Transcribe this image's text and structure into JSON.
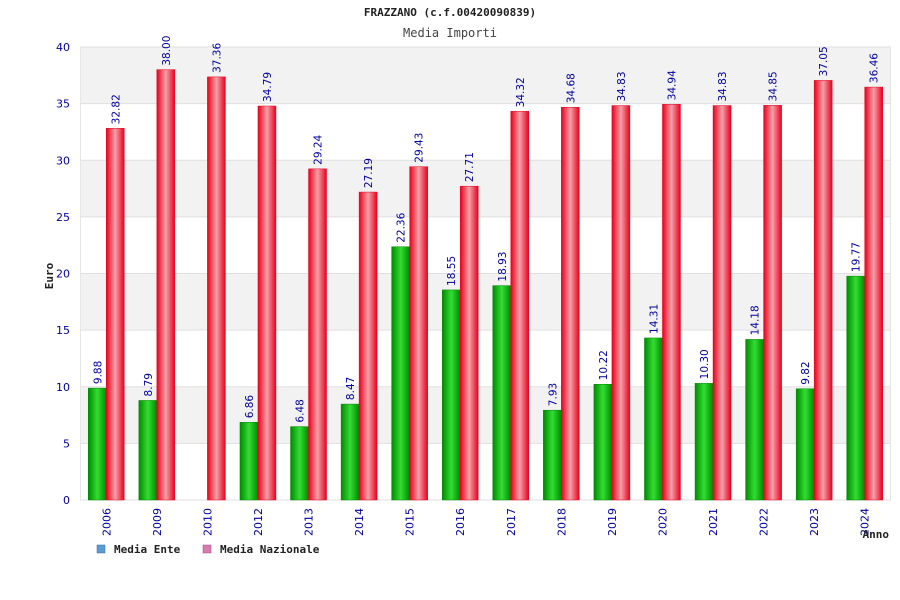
{
  "chart_data": {
    "type": "bar",
    "title": "FRAZZANO (c.f.00420090839)",
    "subtitle": "Media Importi",
    "ylabel": "Euro",
    "xlabel": "Anno",
    "ylim": [
      0,
      40
    ],
    "yticks": [
      "0",
      "5",
      "10",
      "15",
      "20",
      "25",
      "30",
      "35",
      "40"
    ],
    "categories": [
      "2006",
      "2009",
      "2010",
      "2012",
      "2013",
      "2014",
      "2015",
      "2016",
      "2017",
      "2018",
      "2019",
      "2020",
      "2021",
      "2022",
      "2023",
      "2024"
    ],
    "series": [
      {
        "name": "Media Ente",
        "values": [
          9.88,
          8.79,
          null,
          6.86,
          6.48,
          8.47,
          22.36,
          18.55,
          18.93,
          7.93,
          10.22,
          14.31,
          10.3,
          14.18,
          9.82,
          19.77
        ],
        "labels": [
          "9.88",
          "8.79",
          "",
          "6.86",
          "6.48",
          "8.47",
          "22.36",
          "18.55",
          "18.93",
          "7.93",
          "10.22",
          "14.31",
          "10.30",
          "14.18",
          "9.82",
          "19.77"
        ]
      },
      {
        "name": "Media Nazionale",
        "values": [
          32.82,
          38.0,
          37.36,
          34.79,
          29.24,
          27.19,
          29.43,
          27.71,
          34.32,
          34.68,
          34.83,
          34.94,
          34.83,
          34.85,
          37.05,
          36.46
        ],
        "labels": [
          "32.82",
          "38.00",
          "37.36",
          "34.79",
          "29.24",
          "27.19",
          "29.43",
          "27.71",
          "34.32",
          "34.68",
          "34.83",
          "34.94",
          "34.83",
          "34.85",
          "37.05",
          "36.46"
        ]
      }
    ],
    "legend": [
      {
        "label": "Media Ente",
        "color": "#5b9bd5"
      },
      {
        "label": "Media Nazionale",
        "color": "#d97ab0"
      }
    ],
    "colors": {
      "ente_dark": "#008a00",
      "ente_light": "#33dd33",
      "naz_dark": "#e8001c",
      "naz_light": "#f4a0a8",
      "axis_text": "#0000a0",
      "grid_band": "#f2f2f2"
    },
    "grid": true,
    "legend_position": "bottom-left"
  }
}
